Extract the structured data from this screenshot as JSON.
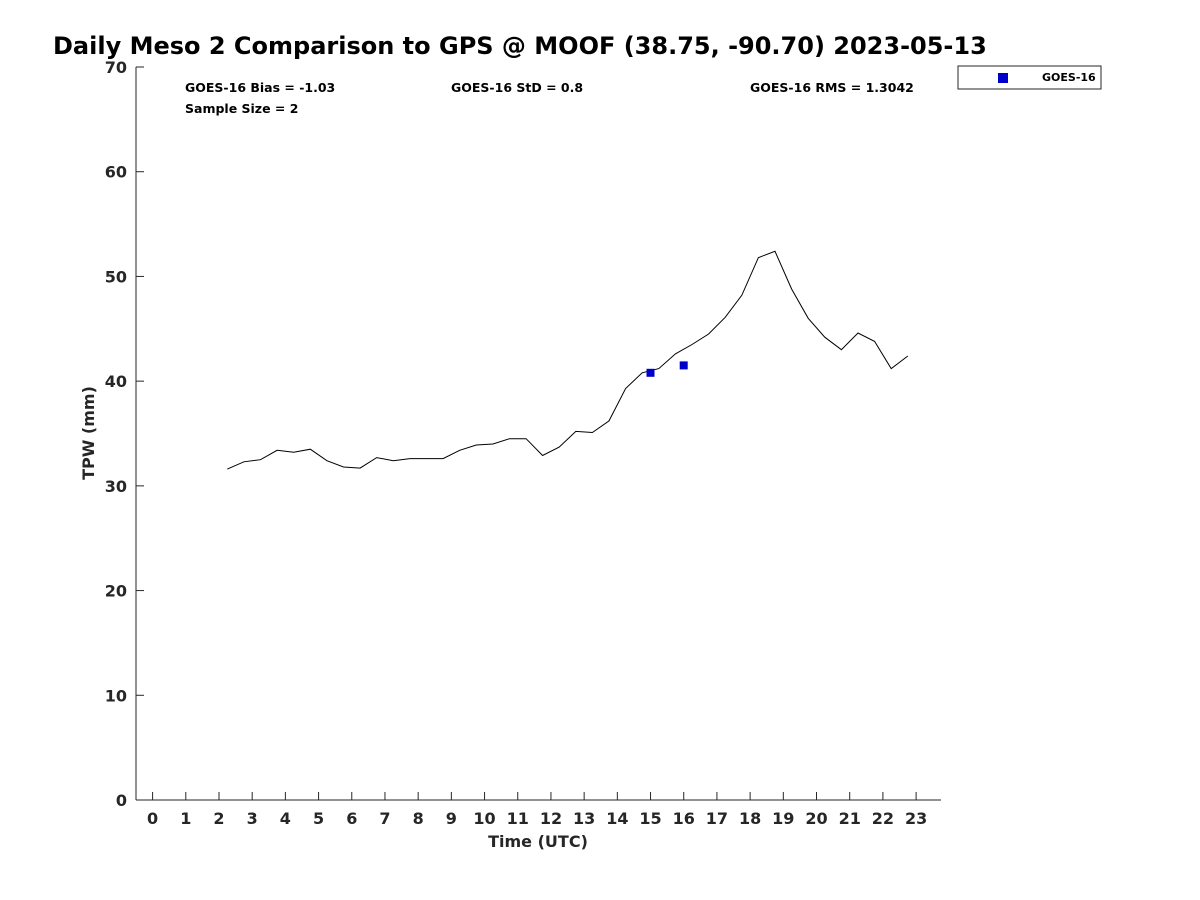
{
  "chart_data": {
    "type": "line",
    "title": "Daily Meso 2 Comparison to GPS @ MOOF (38.75, -90.70) 2023-05-13",
    "xlabel": "Time (UTC)",
    "ylabel": "TPW (mm)",
    "xlim": [
      -0.5,
      23.75
    ],
    "ylim": [
      0,
      70
    ],
    "xticks": [
      0,
      1,
      2,
      3,
      4,
      5,
      6,
      7,
      8,
      9,
      10,
      11,
      12,
      13,
      14,
      15,
      16,
      17,
      18,
      19,
      20,
      21,
      22,
      23
    ],
    "yticks": [
      0,
      10,
      20,
      30,
      40,
      50,
      60,
      70
    ],
    "grid": false,
    "legend_position": "top-right (outside)",
    "stats": {
      "bias": "GOES-16 Bias = -1.03",
      "std": "GOES-16 StD = 0.8",
      "rms": "GOES-16 RMS = 1.3042",
      "sample": "Sample Size = 2"
    },
    "series": [
      {
        "kind": "line",
        "color": "#000000",
        "x": [
          2.25,
          2.75,
          3.25,
          3.75,
          4.25,
          4.75,
          5.25,
          5.75,
          6.25,
          6.75,
          7.25,
          7.75,
          8.25,
          8.75,
          9.25,
          9.75,
          10.25,
          10.75,
          11.25,
          11.75,
          12.25,
          12.75,
          13.25,
          13.75,
          14.25,
          14.75,
          15.25,
          15.75,
          16.25,
          16.75,
          17.25,
          17.75,
          18.25,
          18.75,
          19.25,
          19.75,
          20.25,
          20.75,
          21.25,
          21.75,
          22.25,
          22.75
        ],
        "y": [
          31.6,
          32.3,
          32.5,
          33.4,
          33.2,
          33.5,
          32.4,
          31.8,
          31.7,
          32.7,
          32.4,
          32.6,
          32.6,
          32.6,
          33.4,
          33.9,
          34.0,
          34.5,
          34.5,
          32.9,
          33.7,
          35.2,
          35.1,
          36.2,
          39.3,
          40.8,
          41.2,
          42.6,
          43.5,
          44.5,
          46.1,
          48.2,
          51.8,
          52.4,
          48.8,
          46.0,
          44.2,
          43.0,
          44.6,
          43.8,
          41.2,
          42.4
        ]
      },
      {
        "kind": "scatter",
        "name": "GOES-16",
        "color": "#0000cc",
        "marker": "square",
        "x": [
          15.0,
          16.0
        ],
        "y": [
          40.8,
          41.5
        ]
      }
    ]
  }
}
